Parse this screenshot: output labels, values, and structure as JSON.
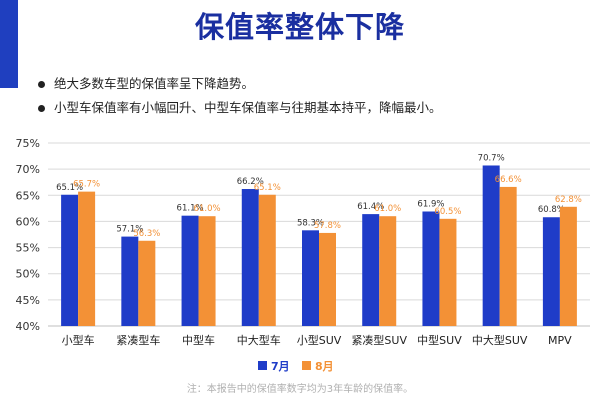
{
  "title": "保值率整体下降",
  "bullets": [
    "绝大多数车型的保值率呈下降趋势。",
    "小型车保值率有小幅回升、中型车保值率与往期基本持平，降幅最小。"
  ],
  "note": "注：本报告中的保值率数字均为3年车龄的保值率。",
  "colors": {
    "jul": "#1f3cc8",
    "aug": "#f39136",
    "corner": "#1f3fbf"
  },
  "chart_data": {
    "type": "bar",
    "categories": [
      "小型车",
      "紧凑型车",
      "中型车",
      "中大型车",
      "小型SUV",
      "紧凑型SUV",
      "中型SUV",
      "中大型SUV",
      "MPV"
    ],
    "series": [
      {
        "name": "7月",
        "values": [
          65.1,
          57.1,
          61.1,
          66.2,
          58.3,
          61.4,
          61.9,
          70.7,
          60.8
        ],
        "labels": [
          "65.1%",
          "57.1%",
          "61.1%",
          "66.2%",
          "58.3%",
          "61.4%",
          "61.9%",
          "70.7%",
          "60.8%"
        ]
      },
      {
        "name": "8月",
        "values": [
          65.7,
          56.3,
          61.0,
          65.1,
          57.8,
          61.0,
          60.5,
          66.6,
          62.8
        ],
        "labels": [
          "65.7%",
          "56.3%",
          "61.0%",
          "65.1%",
          "57.8%",
          "61.0%",
          "60.5%",
          "66.6%",
          "62.8%"
        ]
      }
    ],
    "yticks": [
      "40%",
      "45%",
      "50%",
      "55%",
      "60%",
      "65%",
      "70%",
      "75%"
    ],
    "ylim": [
      40,
      75
    ],
    "grid": true,
    "legend_position": "bottom-center"
  }
}
